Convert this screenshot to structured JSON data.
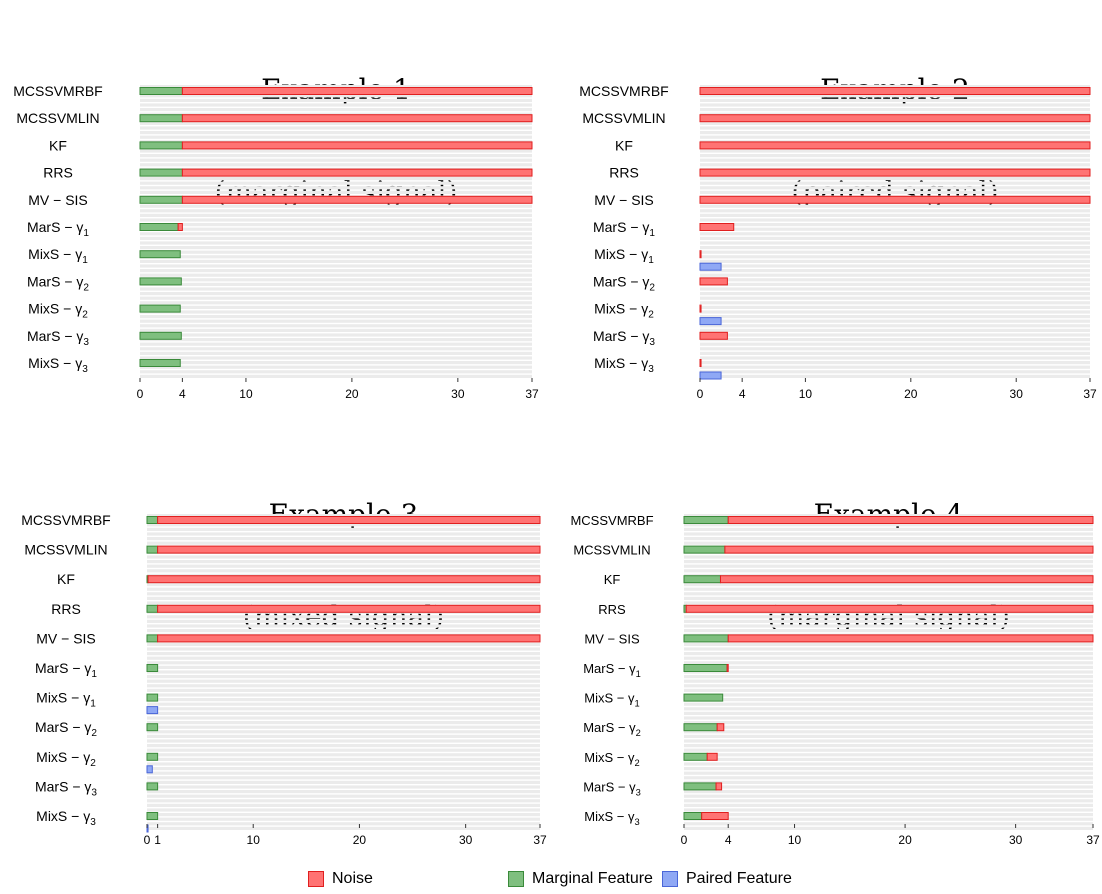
{
  "colors": {
    "noise": "#ff7373",
    "noise_border": "#e01f1f",
    "marginal": "#7fbf7f",
    "marginal_border": "#3a8a3a",
    "paired": "#8fa8f5",
    "paired_border": "#4a66d8",
    "track": "#ebebeb"
  },
  "legend": [
    {
      "key": "noise",
      "label": "Noise"
    },
    {
      "key": "marginal",
      "label": "Marginal Feature"
    },
    {
      "key": "paired",
      "label": "Paired Feature"
    }
  ],
  "chart_data": [
    {
      "type": "bar",
      "title": "Example 1",
      "subtitle": "(marginal signal)",
      "orientation": "horizontal",
      "stacked": true,
      "xlim": [
        0,
        37
      ],
      "xticks": [
        0,
        4,
        10,
        20,
        30,
        37
      ],
      "rows": [
        {
          "label": "MCSSVMRBF",
          "marginal": 4,
          "noise": 33,
          "paired": null
        },
        {
          "label": "MCSSVMLIN",
          "marginal": 4,
          "noise": 33,
          "paired": null
        },
        {
          "label": "KF",
          "marginal": 4,
          "noise": 33,
          "paired": null
        },
        {
          "label": "RRS",
          "marginal": 4,
          "noise": 33,
          "paired": null
        },
        {
          "label": "MV − SIS",
          "marginal": 4,
          "noise": 33,
          "paired": null
        },
        {
          "label": "MarS − γ",
          "sub": "1",
          "marginal": 3.6,
          "noise": 0.4,
          "paired": null
        },
        {
          "label": "MixS − γ",
          "sub": "1",
          "marginal": 3.8,
          "noise": 0,
          "paired": null
        },
        {
          "label": "MarS − γ",
          "sub": "2",
          "marginal": 3.9,
          "noise": 0,
          "paired": null
        },
        {
          "label": "MixS − γ",
          "sub": "2",
          "marginal": 3.8,
          "noise": 0,
          "paired": null
        },
        {
          "label": "MarS − γ",
          "sub": "3",
          "marginal": 3.9,
          "noise": 0,
          "paired": null
        },
        {
          "label": "MixS − γ",
          "sub": "3",
          "marginal": 3.8,
          "noise": 0,
          "paired": null
        }
      ]
    },
    {
      "type": "bar",
      "title": "Example 2",
      "subtitle": "(paired signal)",
      "orientation": "horizontal",
      "stacked": true,
      "xlim": [
        0,
        37
      ],
      "xticks": [
        0,
        4,
        10,
        20,
        30,
        37
      ],
      "rows": [
        {
          "label": "MCSSVMRBF",
          "marginal": 0,
          "noise": 37,
          "paired": null
        },
        {
          "label": "MCSSVMLIN",
          "marginal": 0,
          "noise": 37,
          "paired": null
        },
        {
          "label": "KF",
          "marginal": 0,
          "noise": 37,
          "paired": null
        },
        {
          "label": "RRS",
          "marginal": 0,
          "noise": 37,
          "paired": null
        },
        {
          "label": "MV − SIS",
          "marginal": 0,
          "noise": 37,
          "paired": null
        },
        {
          "label": "MarS − γ",
          "sub": "1",
          "marginal": 0,
          "noise": 3.2,
          "paired": null
        },
        {
          "label": "MixS − γ",
          "sub": "1",
          "marginal": 0,
          "noise": 0.1,
          "paired": 2
        },
        {
          "label": "MarS − γ",
          "sub": "2",
          "marginal": 0,
          "noise": 2.6,
          "paired": null
        },
        {
          "label": "MixS − γ",
          "sub": "2",
          "marginal": 0,
          "noise": 0.1,
          "paired": 2
        },
        {
          "label": "MarS − γ",
          "sub": "3",
          "marginal": 0,
          "noise": 2.6,
          "paired": null
        },
        {
          "label": "MixS − γ",
          "sub": "3",
          "marginal": 0,
          "noise": 0.1,
          "paired": 2
        }
      ]
    },
    {
      "type": "bar",
      "title": "Example 3",
      "subtitle": "(mixed signal)",
      "orientation": "horizontal",
      "stacked": true,
      "xlim": [
        0,
        37
      ],
      "xticks": [
        0,
        1,
        10,
        20,
        30,
        37
      ],
      "rows": [
        {
          "label": "MCSSVMRBF",
          "marginal": 1,
          "noise": 36,
          "paired": null
        },
        {
          "label": "MCSSVMLIN",
          "marginal": 1,
          "noise": 36,
          "paired": null
        },
        {
          "label": "KF",
          "marginal": 0.1,
          "noise": 36.9,
          "paired": null
        },
        {
          "label": "RRS",
          "marginal": 1,
          "noise": 36,
          "paired": null
        },
        {
          "label": "MV − SIS",
          "marginal": 1,
          "noise": 36,
          "paired": null
        },
        {
          "label": "MarS − γ",
          "sub": "1",
          "marginal": 1,
          "noise": 0,
          "paired": null
        },
        {
          "label": "MixS − γ",
          "sub": "1",
          "marginal": 1,
          "noise": 0,
          "paired": 1
        },
        {
          "label": "MarS − γ",
          "sub": "2",
          "marginal": 1,
          "noise": 0,
          "paired": null
        },
        {
          "label": "MixS − γ",
          "sub": "2",
          "marginal": 1,
          "noise": 0,
          "paired": 0.5
        },
        {
          "label": "MarS − γ",
          "sub": "3",
          "marginal": 1,
          "noise": 0,
          "paired": null
        },
        {
          "label": "MixS − γ",
          "sub": "3",
          "marginal": 1,
          "noise": 0,
          "paired": 0.1
        }
      ]
    },
    {
      "type": "bar",
      "title": "Example 4",
      "subtitle": "(marginal signal)",
      "orientation": "horizontal",
      "stacked": true,
      "xlim": [
        0,
        37
      ],
      "xticks": [
        0,
        4,
        10,
        20,
        30,
        37
      ],
      "rows": [
        {
          "label": "MCSSVMRBF",
          "marginal": 4,
          "noise": 33,
          "paired": null
        },
        {
          "label": "MCSSVMLIN",
          "marginal": 3.7,
          "noise": 33.3,
          "paired": null
        },
        {
          "label": "KF",
          "marginal": 3.3,
          "noise": 33.7,
          "paired": null
        },
        {
          "label": "RRS",
          "marginal": 0.2,
          "noise": 36.8,
          "paired": null
        },
        {
          "label": "MV − SIS",
          "marginal": 4,
          "noise": 33,
          "paired": null
        },
        {
          "label": "MarS − γ",
          "sub": "1",
          "marginal": 3.9,
          "noise": 0.1,
          "paired": null
        },
        {
          "label": "MixS − γ",
          "sub": "1",
          "marginal": 3.5,
          "noise": 0,
          "paired": null
        },
        {
          "label": "MarS − γ",
          "sub": "2",
          "marginal": 3,
          "noise": 0.6,
          "paired": null
        },
        {
          "label": "MixS − γ",
          "sub": "2",
          "marginal": 2.1,
          "noise": 0.9,
          "paired": null
        },
        {
          "label": "MarS − γ",
          "sub": "3",
          "marginal": 2.9,
          "noise": 0.5,
          "paired": null
        },
        {
          "label": "MixS − γ",
          "sub": "3",
          "marginal": 1.6,
          "noise": 2.4,
          "paired": null
        }
      ]
    }
  ]
}
